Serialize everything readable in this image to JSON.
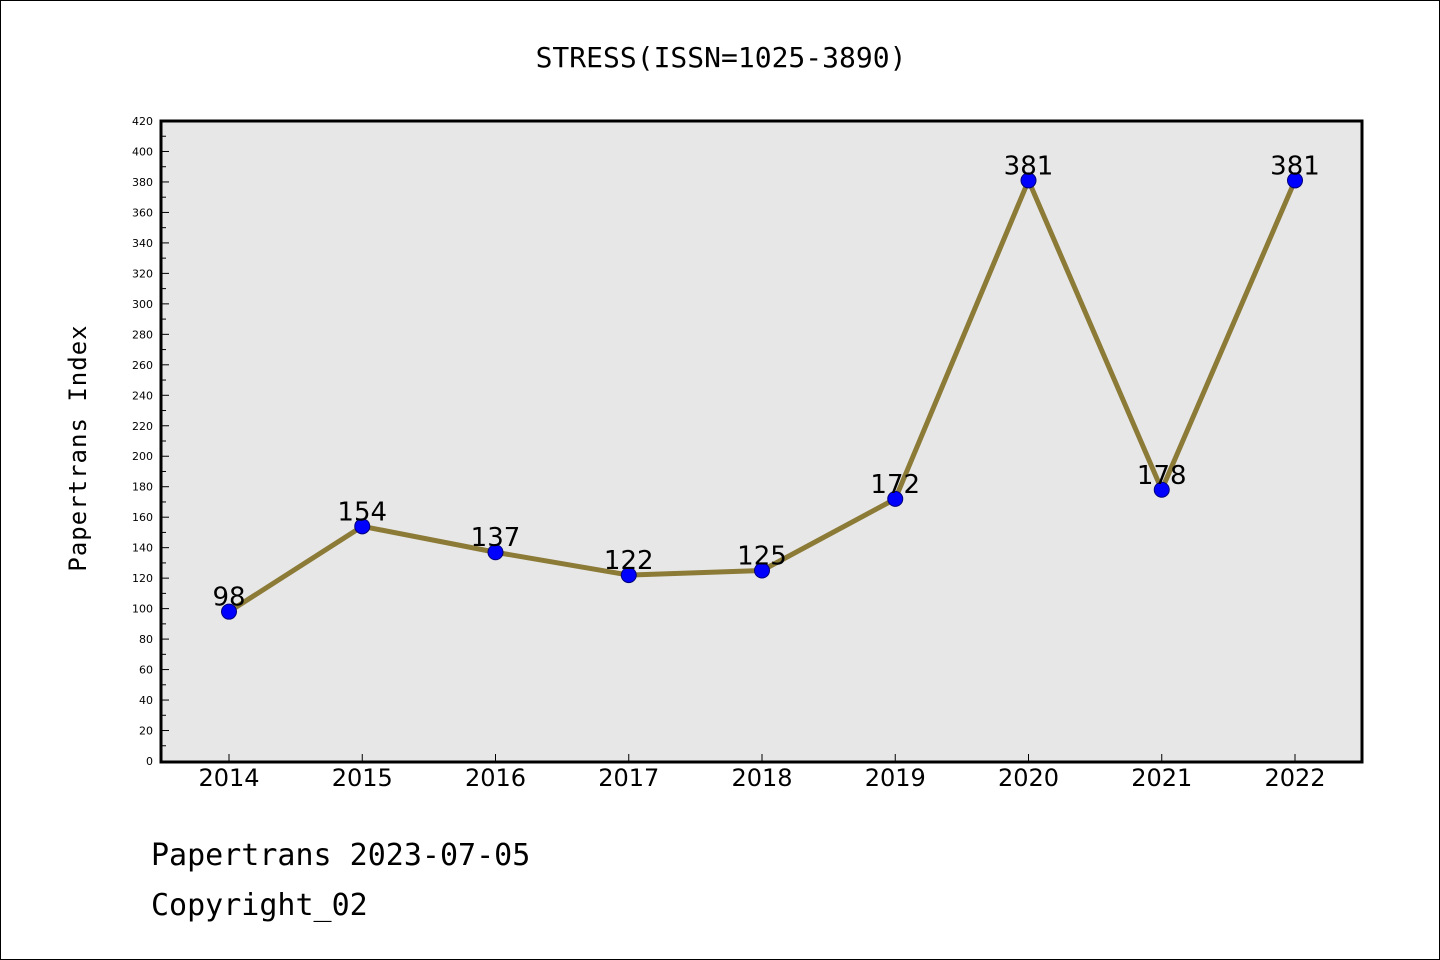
{
  "chart_data": {
    "type": "line",
    "title": "STRESS(ISSN=1025-3890)",
    "xlabel": "",
    "ylabel": "Papertrans Index",
    "categories": [
      "2014",
      "2015",
      "2016",
      "2017",
      "2018",
      "2019",
      "2020",
      "2021",
      "2022"
    ],
    "series": [
      {
        "values": [
          98,
          154,
          137,
          122,
          125,
          172,
          381,
          178,
          381
        ]
      }
    ],
    "data_labels": [
      "98",
      "154",
      "137",
      "122",
      "125",
      "172",
      "381",
      "178",
      "381"
    ],
    "ylim": [
      0,
      420
    ],
    "yticks": [
      0,
      20,
      40,
      60,
      80,
      100,
      120,
      140,
      160,
      180,
      200,
      220,
      240,
      260,
      280,
      300,
      320,
      340,
      360,
      380,
      400,
      420
    ],
    "grid": false,
    "legend": "none",
    "colors": {
      "plot_background": "#e7e7e7",
      "line": "#8c7a37",
      "marker": "#0000ff",
      "marker_edge": "#00007a"
    }
  },
  "footer": {
    "line1": "Papertrans 2023-07-05",
    "line2": "Copyright_02"
  }
}
